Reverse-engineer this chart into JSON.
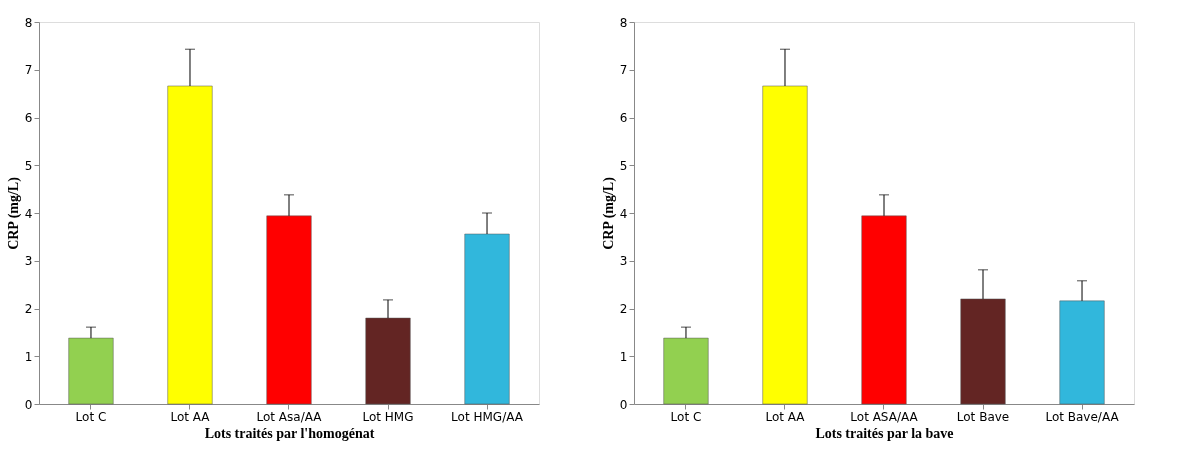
{
  "chart_data": [
    {
      "type": "bar",
      "xlabel": "Lots traités par l'homogénat",
      "ylabel": "CRP  (mg/L)",
      "categories": [
        "Lot C",
        "Lot AA",
        "Lot Asa/AA",
        "Lot HMG",
        "Lot HMG/AA"
      ],
      "values": [
        1.38,
        6.66,
        3.94,
        1.8,
        3.56
      ],
      "errors": [
        [
          1.38,
          1.61
        ],
        [
          6.66,
          7.43
        ],
        [
          3.94,
          4.38
        ],
        [
          1.8,
          2.18
        ],
        [
          3.56,
          4.0
        ]
      ],
      "colors": [
        "#92d050",
        "#ffff00",
        "#ff0000",
        "#632523",
        "#31b7dc"
      ],
      "ylim": [
        0,
        8
      ],
      "yticks": [
        0,
        1,
        2,
        3,
        4,
        5,
        6,
        7,
        8
      ],
      "grid": false
    },
    {
      "type": "bar",
      "xlabel": "Lots traités par la bave",
      "ylabel": "CRP  (mg/L)",
      "categories": [
        "Lot C",
        "Lot AA",
        "Lot ASA/AA",
        "Lot Bave",
        "Lot Bave/AA"
      ],
      "values": [
        1.38,
        6.66,
        3.94,
        2.2,
        2.16
      ],
      "errors": [
        [
          1.38,
          1.61
        ],
        [
          6.66,
          7.43
        ],
        [
          3.94,
          4.38
        ],
        [
          2.2,
          2.81
        ],
        [
          2.16,
          2.58
        ]
      ],
      "colors": [
        "#92d050",
        "#ffff00",
        "#ff0000",
        "#632523",
        "#31b7dc"
      ],
      "ylim": [
        0,
        8
      ],
      "yticks": [
        0,
        1,
        2,
        3,
        4,
        5,
        6,
        7,
        8
      ],
      "grid": false
    }
  ]
}
